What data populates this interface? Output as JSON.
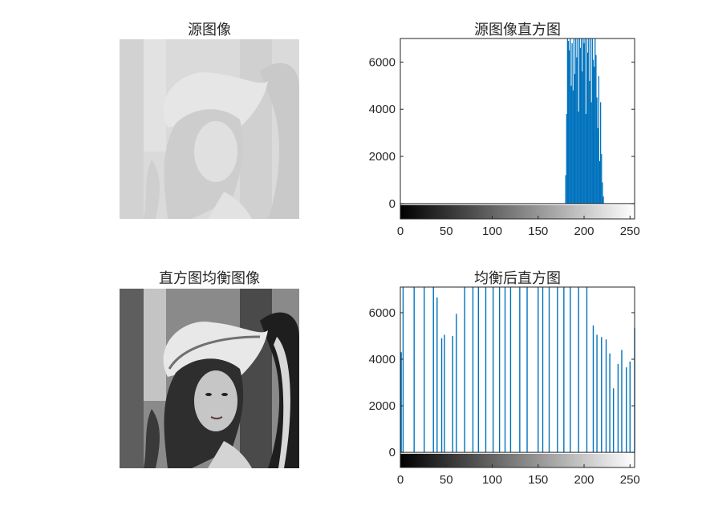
{
  "figure": {
    "panels": [
      {
        "id": "src-image",
        "title": "源图像"
      },
      {
        "id": "src-hist",
        "title": "源图像直方图"
      },
      {
        "id": "eq-image",
        "title": "直方图均衡图像"
      },
      {
        "id": "eq-hist",
        "title": "均衡后直方图"
      }
    ]
  },
  "chart_data": [
    {
      "type": "bar",
      "title": "源图像直方图",
      "xlabel": "",
      "ylabel": "",
      "xlim": [
        0,
        255
      ],
      "ylim": [
        -650,
        7000
      ],
      "xticks": [
        0,
        50,
        100,
        150,
        200,
        250
      ],
      "yticks": [
        0,
        2000,
        4000,
        6000
      ],
      "color": "#0072BD",
      "colorbar": "grayscale 0-255",
      "x": [
        180,
        181,
        182,
        183,
        184,
        185,
        186,
        187,
        188,
        189,
        190,
        191,
        192,
        193,
        194,
        195,
        196,
        197,
        198,
        199,
        200,
        201,
        202,
        203,
        204,
        205,
        206,
        207,
        208,
        209,
        210,
        211,
        212,
        213,
        214,
        215,
        216,
        217,
        218,
        219,
        220,
        221
      ],
      "values": [
        1200,
        3800,
        7000,
        6900,
        6500,
        7000,
        5000,
        6800,
        4800,
        7000,
        5500,
        7000,
        6200,
        7000,
        3900,
        7000,
        6600,
        7000,
        5600,
        7000,
        6800,
        7000,
        3800,
        7000,
        6400,
        7000,
        5200,
        7000,
        4300,
        7000,
        6100,
        5800,
        7000,
        6300,
        4500,
        3200,
        5400,
        1800,
        4300,
        2100,
        900,
        300
      ]
    },
    {
      "type": "bar",
      "title": "均衡后直方图",
      "xlabel": "",
      "ylabel": "",
      "xlim": [
        0,
        255
      ],
      "ylim": [
        -650,
        7100
      ],
      "xticks": [
        0,
        50,
        100,
        150,
        200,
        250
      ],
      "yticks": [
        0,
        2000,
        4000,
        6000
      ],
      "color": "#0072BD",
      "colorbar": "grayscale 0-255",
      "x": [
        1,
        3,
        15,
        26,
        36,
        40,
        45,
        48,
        57,
        61,
        70,
        79,
        85,
        93,
        101,
        108,
        114,
        120,
        130,
        138,
        150,
        155,
        162,
        171,
        178,
        185,
        194,
        203,
        210,
        214,
        219,
        224,
        228,
        232,
        237,
        241,
        246,
        250,
        255
      ],
      "values": [
        4300,
        7100,
        7100,
        7100,
        7100,
        6650,
        4900,
        5050,
        5000,
        5950,
        7100,
        7100,
        7100,
        7100,
        7100,
        7100,
        7100,
        7100,
        7100,
        7100,
        7100,
        7100,
        7100,
        7100,
        7100,
        7100,
        7100,
        7100,
        5450,
        5050,
        4950,
        4850,
        4250,
        2750,
        3800,
        4400,
        3650,
        3900,
        5350
      ]
    }
  ]
}
